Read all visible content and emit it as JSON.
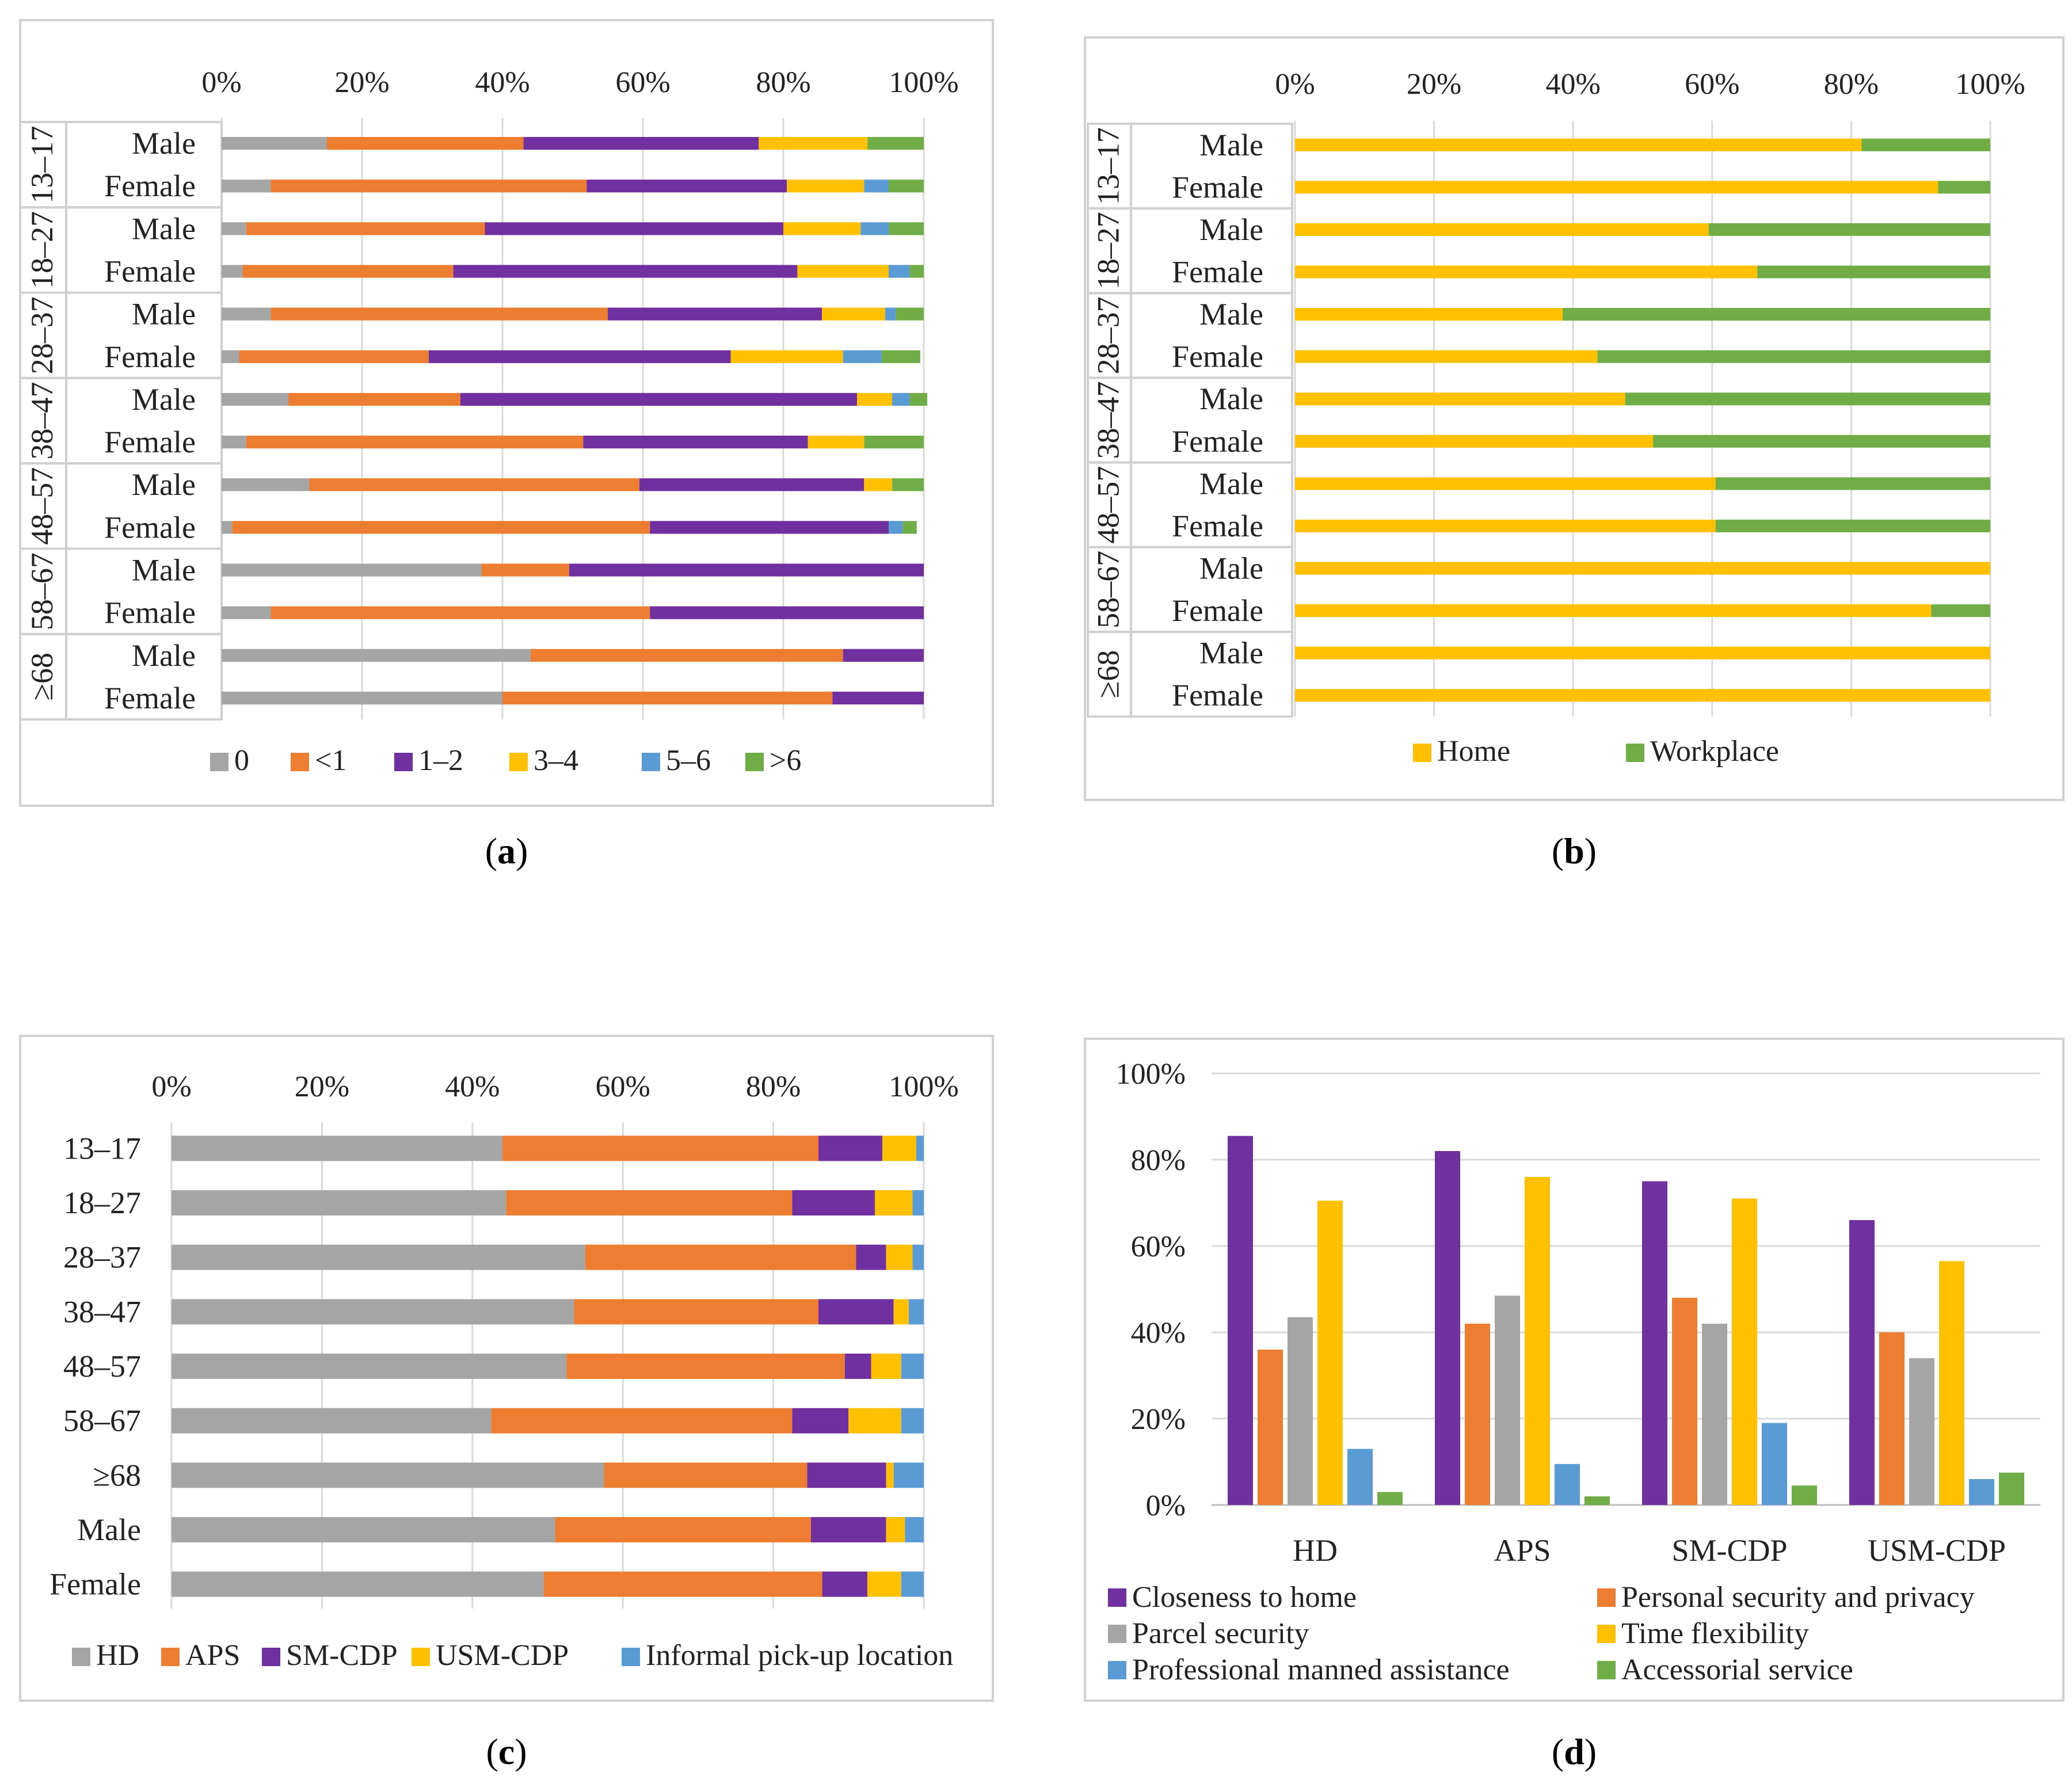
{
  "colors": {
    "gray": "#A5A5A5",
    "orange": "#ED7D31",
    "purple": "#7030A0",
    "yellow": "#FFC000",
    "blue": "#5B9BD5",
    "green": "#70AD47"
  },
  "captions": {
    "a": [
      "(",
      "a",
      ")"
    ],
    "b": [
      "(",
      "b",
      ")"
    ],
    "c": [
      "(",
      "c",
      ")"
    ],
    "d": [
      "(",
      "d",
      ")"
    ]
  },
  "chart_data": [
    {
      "id": "a",
      "type": "bar",
      "orientation": "horizontal-stacked-100",
      "xticks": [
        "0%",
        "20%",
        "40%",
        "60%",
        "80%",
        "100%"
      ],
      "groups": [
        "13–17",
        "18–27",
        "28–37",
        "38–47",
        "48–57",
        "58–67",
        "≥68"
      ],
      "subcategories": [
        "Male",
        "Female"
      ],
      "series": [
        {
          "name": "0",
          "color": "gray",
          "values": [
            15,
            7,
            3.5,
            3,
            7,
            2.5,
            9.5,
            3.5,
            12.5,
            1.5,
            37,
            7,
            44,
            40
          ]
        },
        {
          "name": "<1",
          "color": "orange",
          "values": [
            28,
            45,
            34,
            30,
            48,
            27,
            24.5,
            48,
            47,
            59.5,
            12.5,
            54,
            44.5,
            47
          ]
        },
        {
          "name": "1–2",
          "color": "purple",
          "values": [
            33.5,
            28.5,
            42.5,
            49,
            30.5,
            43,
            56.5,
            32,
            32,
            34,
            50.5,
            39,
            11.5,
            13
          ]
        },
        {
          "name": "3–4",
          "color": "yellow",
          "values": [
            15.5,
            11,
            11,
            13,
            9,
            16,
            5,
            8,
            4,
            0,
            0,
            0,
            0,
            0
          ]
        },
        {
          "name": "5–6",
          "color": "blue",
          "values": [
            0,
            3.5,
            4,
            3,
            1.5,
            5.5,
            2.5,
            0,
            0,
            2,
            0,
            0,
            0,
            0
          ]
        },
        {
          "name": ">6",
          "color": "green",
          "values": [
            8,
            5,
            5,
            2,
            4,
            5.5,
            2.5,
            8.5,
            4.5,
            2,
            0,
            0,
            0,
            0
          ]
        }
      ]
    },
    {
      "id": "b",
      "type": "bar",
      "orientation": "horizontal-stacked-100",
      "xticks": [
        "0%",
        "20%",
        "40%",
        "60%",
        "80%",
        "100%"
      ],
      "groups": [
        "13–17",
        "18–27",
        "28–37",
        "38–47",
        "48–57",
        "58–67",
        "≥68"
      ],
      "subcategories": [
        "Male",
        "Female"
      ],
      "series": [
        {
          "name": "Home",
          "color": "yellow",
          "values": [
            81.5,
            92.5,
            59.5,
            66.5,
            38.5,
            43.5,
            47.5,
            51.5,
            60.5,
            60.5,
            100,
            91.5,
            100,
            100
          ]
        },
        {
          "name": "Workplace",
          "color": "green",
          "values": [
            18.5,
            7.5,
            40.5,
            33.5,
            61.5,
            56.5,
            52.5,
            48.5,
            39.5,
            39.5,
            0,
            8.5,
            0,
            0
          ]
        }
      ]
    },
    {
      "id": "c",
      "type": "bar",
      "orientation": "horizontal-stacked-100",
      "xticks": [
        "0%",
        "20%",
        "40%",
        "60%",
        "80%",
        "100%"
      ],
      "categories": [
        "13–17",
        "18–27",
        "28–37",
        "38–47",
        "48–57",
        "58–67",
        "≥68",
        "Male",
        "Female"
      ],
      "series": [
        {
          "name": "HD",
          "color": "gray",
          "values": [
            44,
            44.5,
            55,
            53.5,
            52.5,
            42.5,
            57.5,
            51,
            49.5
          ]
        },
        {
          "name": "APS",
          "color": "orange",
          "values": [
            42,
            38,
            36,
            32.5,
            37,
            40,
            27,
            34,
            37
          ]
        },
        {
          "name": "SM-CDP",
          "color": "purple",
          "values": [
            8.5,
            11,
            4,
            10,
            3.5,
            7.5,
            10.5,
            10,
            6
          ]
        },
        {
          "name": "USM-CDP",
          "color": "yellow",
          "values": [
            4.5,
            5,
            3.5,
            2,
            4,
            7,
            1,
            2.5,
            4.5
          ]
        },
        {
          "name": "Informal pick-up location",
          "color": "blue",
          "values": [
            1,
            1.5,
            1.5,
            2,
            3,
            3,
            4,
            2.5,
            3
          ]
        }
      ]
    },
    {
      "id": "d",
      "type": "bar",
      "orientation": "vertical-grouped",
      "yticks": [
        "0%",
        "20%",
        "40%",
        "60%",
        "80%",
        "100%"
      ],
      "ylim": [
        0,
        100
      ],
      "categories": [
        "HD",
        "APS",
        "SM-CDP",
        "USM-CDP"
      ],
      "series": [
        {
          "name": "Closeness to home",
          "color": "purple",
          "values": [
            85.5,
            82,
            75,
            66
          ]
        },
        {
          "name": "Personal security and privacy",
          "color": "orange",
          "values": [
            36,
            42,
            48,
            40
          ]
        },
        {
          "name": "Parcel security",
          "color": "gray",
          "values": [
            43.5,
            48.5,
            42,
            34
          ]
        },
        {
          "name": "Time flexibility",
          "color": "yellow",
          "values": [
            70.5,
            76,
            71,
            56.5
          ]
        },
        {
          "name": "Professional manned assistance",
          "color": "blue",
          "values": [
            13,
            9.5,
            19,
            6
          ]
        },
        {
          "name": "Accessorial service",
          "color": "green",
          "values": [
            3,
            2,
            4.5,
            7.5
          ]
        }
      ]
    }
  ]
}
